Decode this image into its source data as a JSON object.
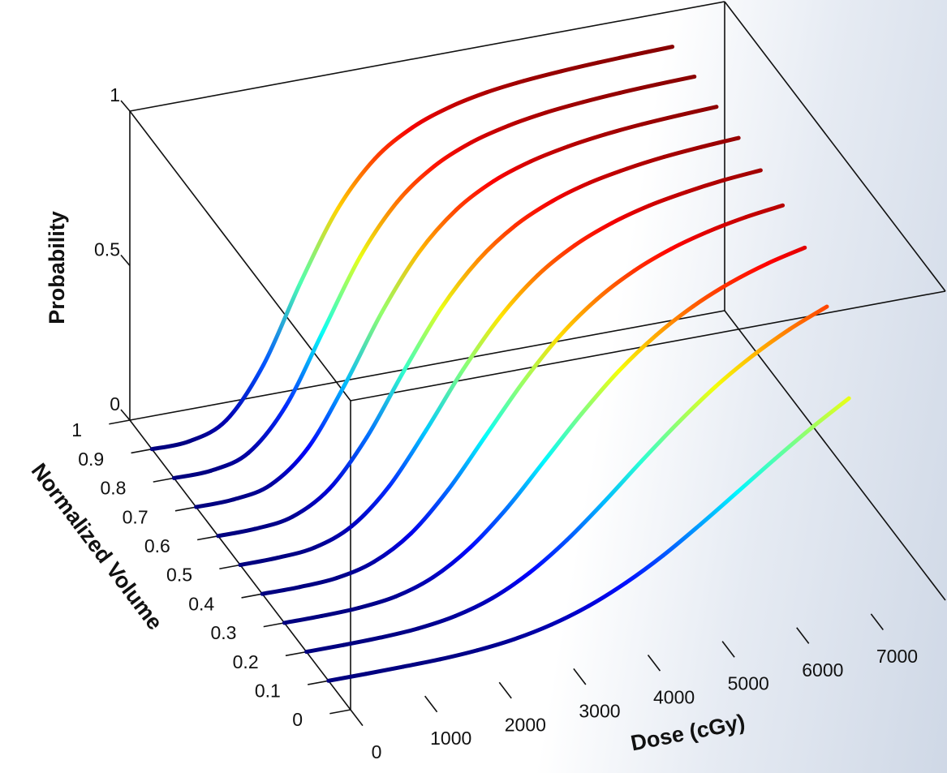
{
  "chart_data": {
    "type": "line3d",
    "colormap": "jet",
    "xlabel": "Dose (cGy)",
    "ylabel": "Normalized Volume",
    "zlabel": "Probability",
    "xlim": [
      0,
      8000
    ],
    "xticks": [
      0,
      1000,
      2000,
      3000,
      4000,
      5000,
      6000,
      7000
    ],
    "ylim": [
      0,
      1
    ],
    "yticks": [
      0,
      0.1,
      0.2,
      0.3,
      0.4,
      0.5,
      0.6,
      0.7,
      0.8,
      0.9,
      1
    ],
    "zlim": [
      0,
      1
    ],
    "zticks": [
      0,
      0.5,
      1
    ],
    "x": [
      0,
      500,
      1000,
      1500,
      2000,
      2500,
      3000,
      3500,
      4000,
      4500,
      5000,
      5500,
      6000,
      6500,
      7000
    ],
    "series": [
      {
        "volume": 0.9,
        "values": [
          0,
          0.003,
          0.049,
          0.206,
          0.451,
          0.667,
          0.807,
          0.885,
          0.929,
          0.955,
          0.97,
          0.979,
          0.985,
          0.989,
          0.992
        ]
      },
      {
        "volume": 0.8,
        "values": [
          0,
          0.002,
          0.037,
          0.165,
          0.384,
          0.604,
          0.76,
          0.854,
          0.909,
          0.941,
          0.961,
          0.973,
          0.981,
          0.986,
          0.989
        ]
      },
      {
        "volume": 0.7,
        "values": [
          0,
          0.002,
          0.027,
          0.123,
          0.307,
          0.52,
          0.692,
          0.807,
          0.877,
          0.919,
          0.945,
          0.962,
          0.973,
          0.98,
          0.985
        ]
      },
      {
        "volume": 0.6,
        "values": [
          0,
          0.001,
          0.018,
          0.087,
          0.231,
          0.424,
          0.604,
          0.738,
          0.828,
          0.885,
          0.922,
          0.945,
          0.961,
          0.971,
          0.978
        ]
      },
      {
        "volume": 0.5,
        "values": [
          0,
          0.001,
          0.012,
          0.059,
          0.165,
          0.325,
          0.5,
          0.649,
          0.76,
          0.835,
          0.885,
          0.919,
          0.941,
          0.957,
          0.967
        ]
      },
      {
        "volume": 0.4,
        "values": [
          0,
          0.0,
          0.007,
          0.037,
          0.107,
          0.226,
          0.377,
          0.528,
          0.657,
          0.754,
          0.824,
          0.873,
          0.907,
          0.931,
          0.947
        ]
      },
      {
        "volume": 0.3,
        "values": [
          0,
          0.0,
          0.004,
          0.019,
          0.059,
          0.133,
          0.24,
          0.37,
          0.5,
          0.616,
          0.709,
          0.781,
          0.835,
          0.875,
          0.904
        ]
      },
      {
        "volume": 0.2,
        "values": [
          0,
          0.0,
          0.002,
          0.009,
          0.027,
          0.063,
          0.123,
          0.206,
          0.307,
          0.416,
          0.52,
          0.614,
          0.692,
          0.756,
          0.807
        ]
      },
      {
        "volume": 0.1,
        "values": [
          0,
          0.0,
          0.001,
          0.003,
          0.01,
          0.024,
          0.049,
          0.087,
          0.14,
          0.206,
          0.284,
          0.367,
          0.451,
          0.531,
          0.604
        ]
      }
    ]
  }
}
